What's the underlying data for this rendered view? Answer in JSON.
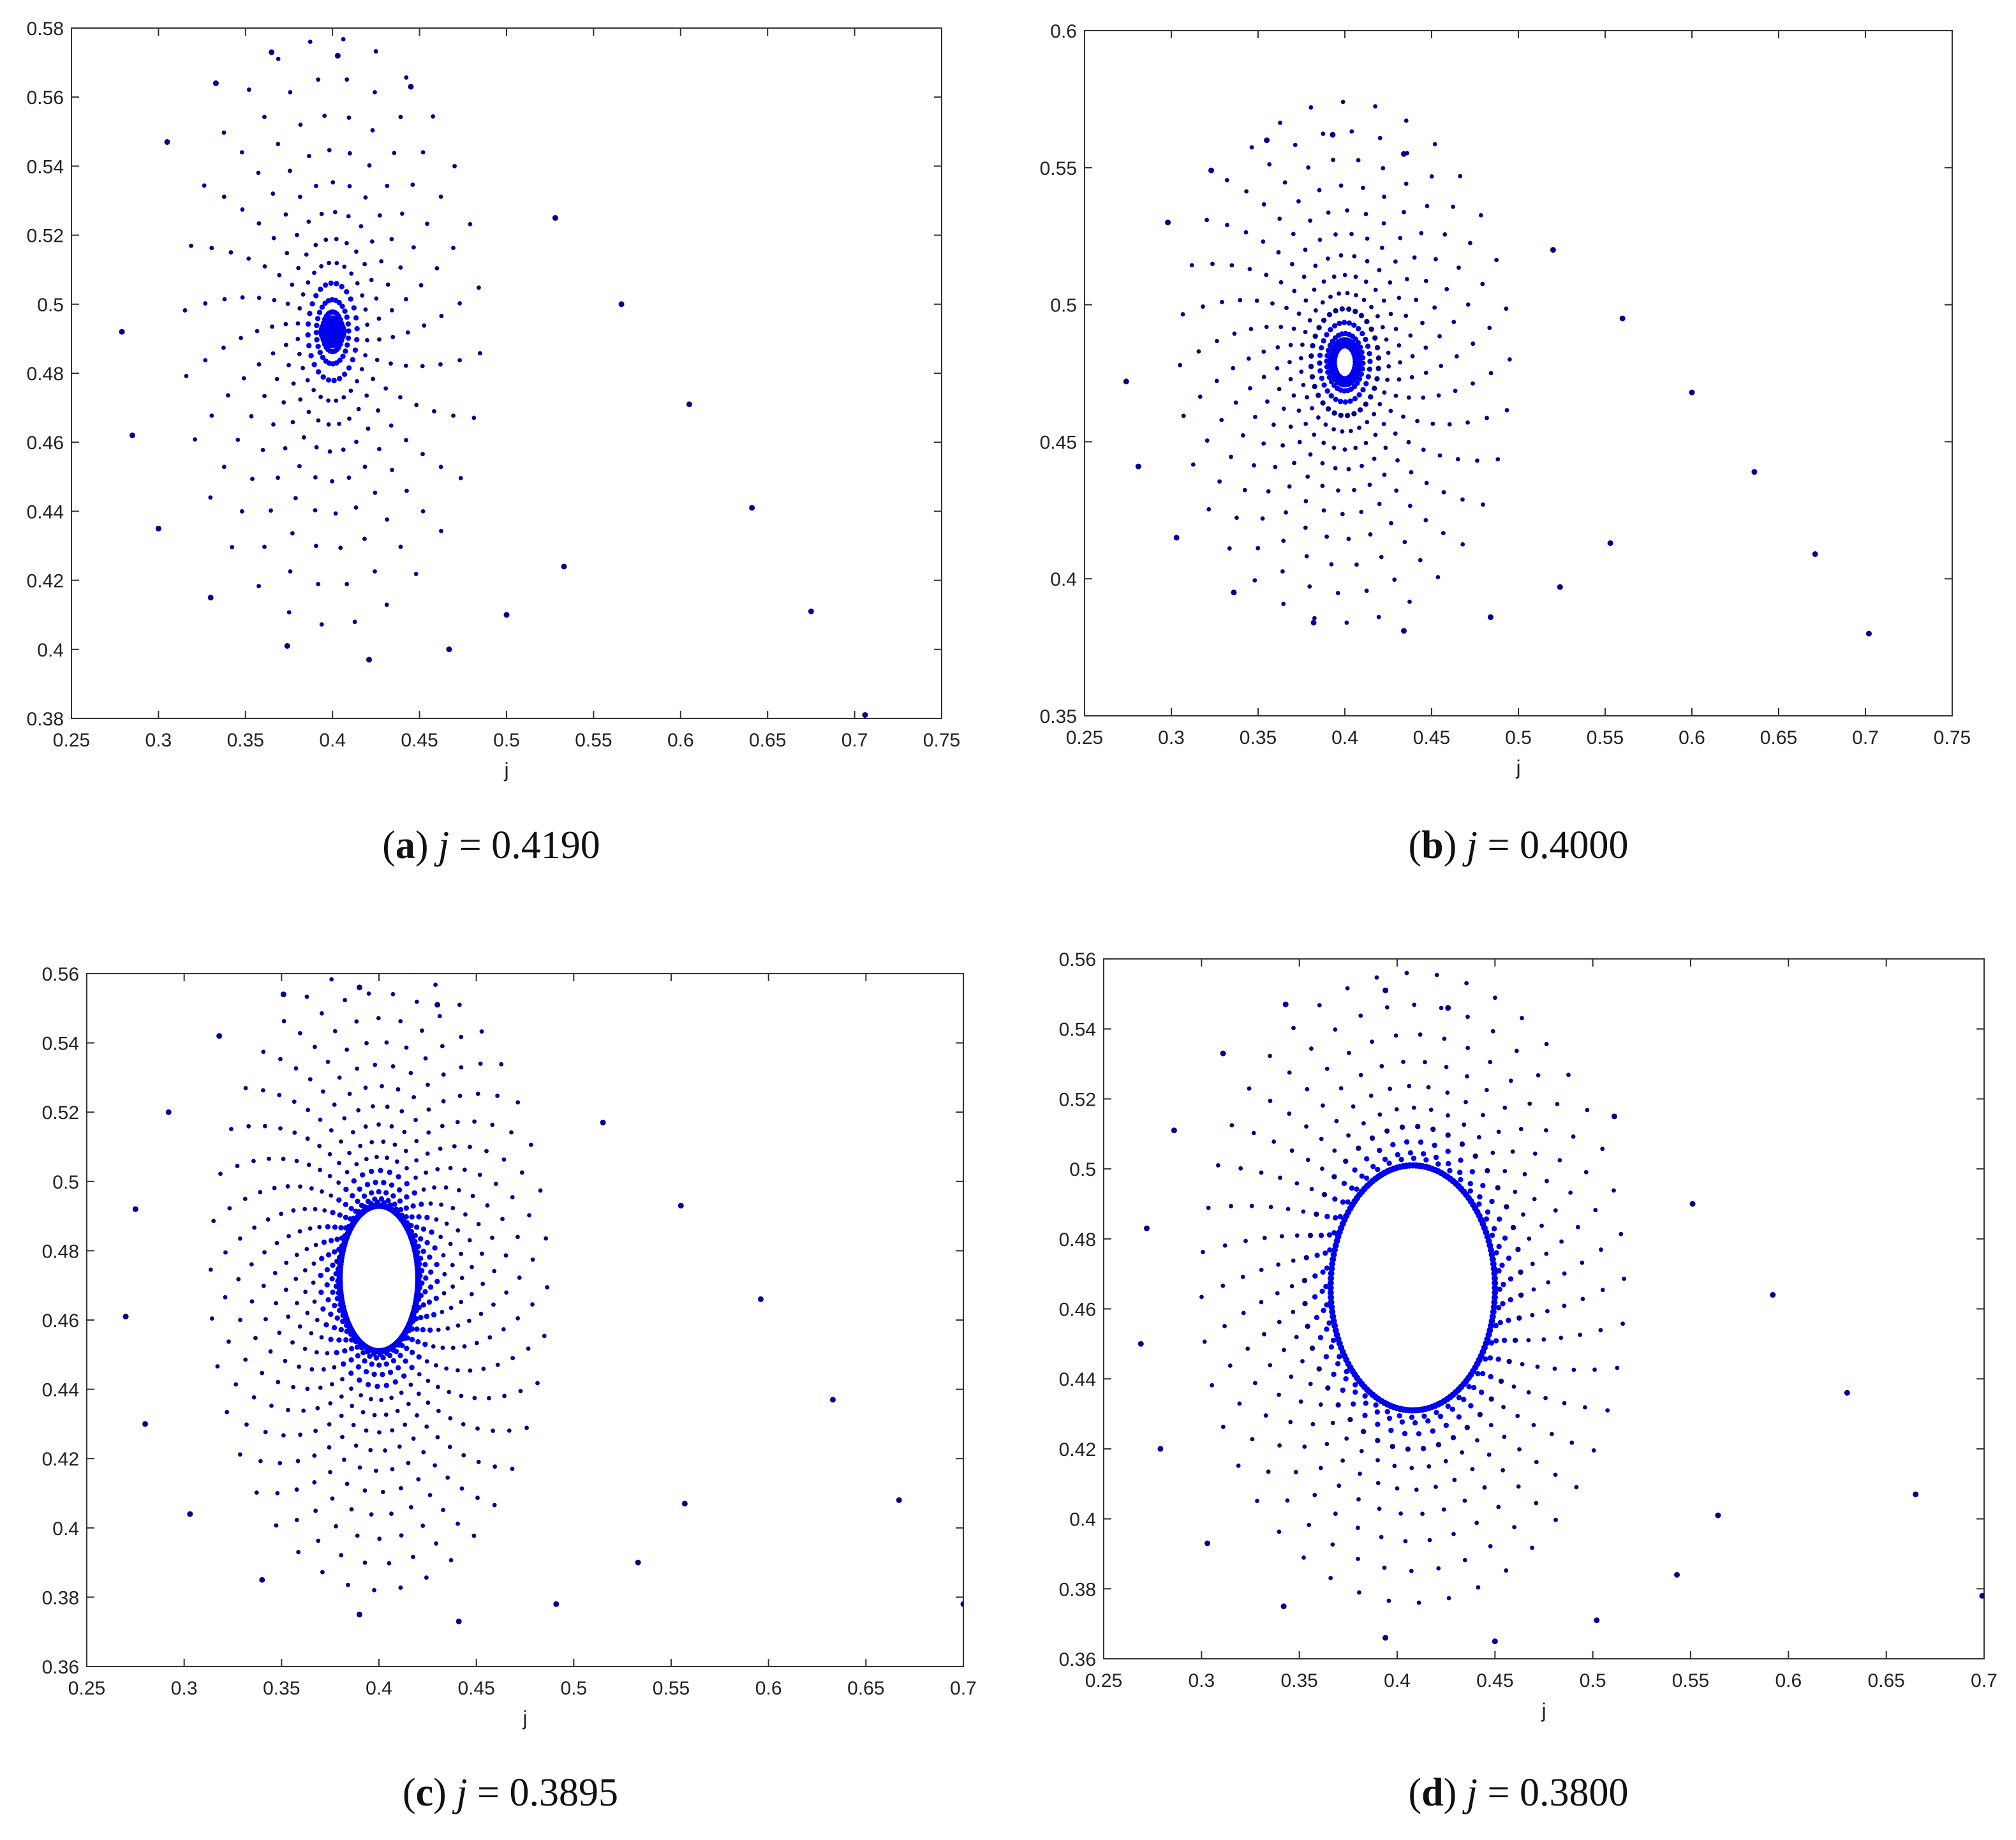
{
  "figure": {
    "marker_color": "#0000ee",
    "marker_dark": "#00008b"
  },
  "chart_data": [
    {
      "type": "scatter",
      "panel": "a",
      "caption_letter": "a",
      "caption_var": "j",
      "caption_eq": " = 0.4190",
      "xlabel": "j",
      "ylabel": "",
      "xlim": [
        0.25,
        0.75
      ],
      "ylim": [
        0.38,
        0.58
      ],
      "xticks": [
        "0.25",
        "0.3",
        "0.35",
        "0.4",
        "0.45",
        "0.5",
        "0.55",
        "0.6",
        "0.65",
        "0.7",
        "0.75"
      ],
      "yticks": [
        "0.38",
        "0.4",
        "0.42",
        "0.44",
        "0.46",
        "0.48",
        "0.5",
        "0.52",
        "0.54",
        "0.56",
        "0.58"
      ],
      "spiral": {
        "center": [
          0.4,
          0.492
        ],
        "arms": 28,
        "r_inner": 0.004,
        "r_outer": 0.085,
        "x_scale": 1.25,
        "twist": 2.2,
        "points_per_arm": 12,
        "hole": 0.0
      },
      "outliers": [
        [
          0.5,
          0.41
        ],
        [
          0.533,
          0.424
        ],
        [
          0.566,
          0.5
        ],
        [
          0.605,
          0.471
        ],
        [
          0.641,
          0.441
        ],
        [
          0.675,
          0.411
        ],
        [
          0.706,
          0.381
        ],
        [
          0.279,
          0.492
        ],
        [
          0.285,
          0.462
        ],
        [
          0.3,
          0.435
        ],
        [
          0.33,
          0.415
        ],
        [
          0.374,
          0.401
        ],
        [
          0.421,
          0.397
        ],
        [
          0.467,
          0.4
        ],
        [
          0.365,
          0.573
        ],
        [
          0.403,
          0.572
        ],
        [
          0.445,
          0.563
        ],
        [
          0.333,
          0.564
        ],
        [
          0.305,
          0.547
        ],
        [
          0.528,
          0.525
        ]
      ]
    },
    {
      "type": "scatter",
      "panel": "b",
      "caption_letter": "b",
      "caption_var": "j",
      "caption_eq": " = 0.4000",
      "xlabel": "j",
      "ylabel": "",
      "xlim": [
        0.25,
        0.75
      ],
      "ylim": [
        0.35,
        0.6
      ],
      "xticks": [
        "0.25",
        "0.3",
        "0.35",
        "0.4",
        "0.45",
        "0.5",
        "0.55",
        "0.6",
        "0.65",
        "0.7",
        "0.75"
      ],
      "yticks": [
        "0.35",
        "0.4",
        "0.45",
        "0.5",
        "0.55",
        "0.6"
      ],
      "spiral": {
        "center": [
          0.4,
          0.479
        ],
        "arms": 32,
        "r_inner": 0.006,
        "r_outer": 0.095,
        "x_scale": 1.25,
        "twist": 2.0,
        "points_per_arm": 14,
        "hole": 0.006
      },
      "outliers": [
        [
          0.524,
          0.397
        ],
        [
          0.553,
          0.413
        ],
        [
          0.6,
          0.468
        ],
        [
          0.636,
          0.439
        ],
        [
          0.671,
          0.409
        ],
        [
          0.702,
          0.38
        ],
        [
          0.274,
          0.472
        ],
        [
          0.281,
          0.441
        ],
        [
          0.303,
          0.415
        ],
        [
          0.336,
          0.395
        ],
        [
          0.382,
          0.384
        ],
        [
          0.434,
          0.381
        ],
        [
          0.484,
          0.386
        ],
        [
          0.355,
          0.56
        ],
        [
          0.393,
          0.562
        ],
        [
          0.434,
          0.555
        ],
        [
          0.323,
          0.549
        ],
        [
          0.298,
          0.53
        ],
        [
          0.52,
          0.52
        ],
        [
          0.56,
          0.495
        ]
      ]
    },
    {
      "type": "scatter",
      "panel": "c",
      "caption_letter": "c",
      "caption_var": "j",
      "caption_eq": " = 0.3895",
      "xlabel": "j",
      "ylabel": "",
      "xlim": [
        0.25,
        0.7
      ],
      "ylim": [
        0.36,
        0.56
      ],
      "xticks": [
        "0.25",
        "0.3",
        "0.35",
        "0.4",
        "0.45",
        "0.5",
        "0.55",
        "0.6",
        "0.65",
        "0.7"
      ],
      "yticks": [
        "0.36",
        "0.38",
        "0.4",
        "0.42",
        "0.44",
        "0.46",
        "0.48",
        "0.5",
        "0.52",
        "0.54",
        "0.56"
      ],
      "spiral": {
        "center": [
          0.4,
          0.472
        ],
        "arms": 40,
        "r_inner": 0.022,
        "r_outer": 0.09,
        "x_scale": 1.2,
        "twist": 1.6,
        "points_per_arm": 15,
        "hole": 0.019
      },
      "outliers": [
        [
          0.533,
          0.39
        ],
        [
          0.557,
          0.407
        ],
        [
          0.596,
          0.466
        ],
        [
          0.633,
          0.437
        ],
        [
          0.667,
          0.408
        ],
        [
          0.7,
          0.378
        ],
        [
          0.27,
          0.461
        ],
        [
          0.28,
          0.43
        ],
        [
          0.303,
          0.404
        ],
        [
          0.34,
          0.385
        ],
        [
          0.39,
          0.375
        ],
        [
          0.441,
          0.373
        ],
        [
          0.491,
          0.378
        ],
        [
          0.351,
          0.554
        ],
        [
          0.39,
          0.556
        ],
        [
          0.43,
          0.551
        ],
        [
          0.318,
          0.542
        ],
        [
          0.292,
          0.52
        ],
        [
          0.515,
          0.517
        ],
        [
          0.555,
          0.493
        ],
        [
          0.275,
          0.492
        ]
      ]
    },
    {
      "type": "scatter",
      "panel": "d",
      "caption_letter": "d",
      "caption_var": "j",
      "caption_eq": " = 0.3800",
      "xlabel": "j",
      "ylabel": "",
      "xlim": [
        0.25,
        0.7
      ],
      "ylim": [
        0.36,
        0.56
      ],
      "xticks": [
        "0.25",
        "0.3",
        "0.35",
        "0.4",
        "0.45",
        "0.5",
        "0.55",
        "0.6",
        "0.65",
        "0.7"
      ],
      "yticks": [
        "0.36",
        "0.38",
        "0.4",
        "0.42",
        "0.44",
        "0.46",
        "0.48",
        "0.5",
        "0.52",
        "0.54",
        "0.56"
      ],
      "spiral": {
        "center": [
          0.408,
          0.466
        ],
        "arms": 44,
        "r_inner": 0.037,
        "r_outer": 0.09,
        "x_scale": 1.5,
        "twist": 1.3,
        "points_per_arm": 10,
        "hole": 0.033
      },
      "outliers": [
        [
          0.502,
          0.371
        ],
        [
          0.543,
          0.384
        ],
        [
          0.564,
          0.401
        ],
        [
          0.592,
          0.464
        ],
        [
          0.63,
          0.436
        ],
        [
          0.665,
          0.407
        ],
        [
          0.699,
          0.378
        ],
        [
          0.269,
          0.45
        ],
        [
          0.279,
          0.42
        ],
        [
          0.303,
          0.393
        ],
        [
          0.342,
          0.375
        ],
        [
          0.394,
          0.366
        ],
        [
          0.45,
          0.365
        ],
        [
          0.343,
          0.547
        ],
        [
          0.394,
          0.551
        ],
        [
          0.426,
          0.546
        ],
        [
          0.311,
          0.533
        ],
        [
          0.286,
          0.511
        ],
        [
          0.511,
          0.515
        ],
        [
          0.551,
          0.49
        ],
        [
          0.272,
          0.483
        ]
      ]
    }
  ]
}
